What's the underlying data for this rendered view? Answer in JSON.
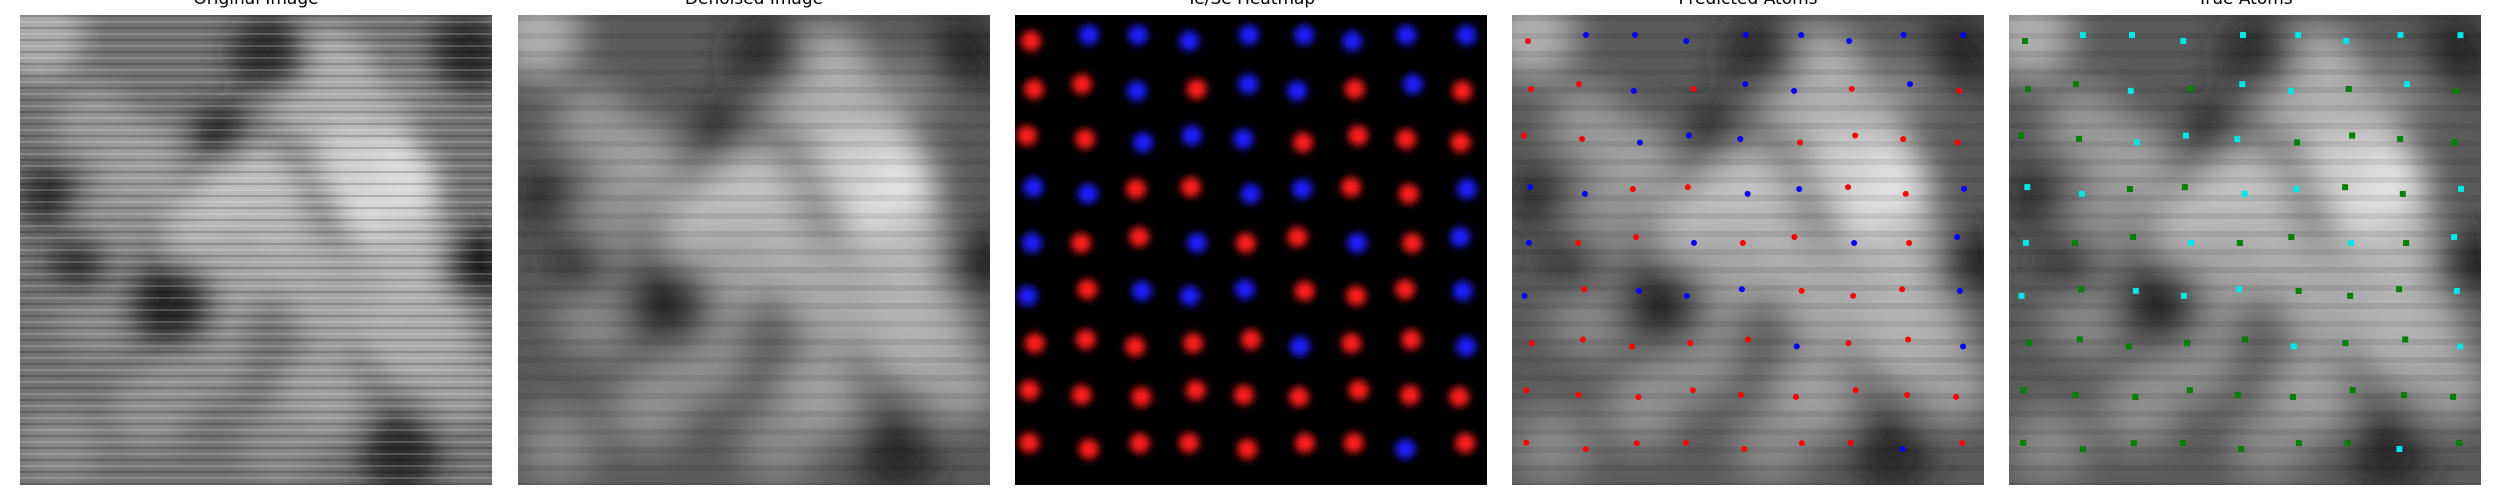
{
  "panels": [
    {
      "key": "original",
      "title": "Original Image",
      "kind": "texture",
      "style": "raw"
    },
    {
      "key": "denoised",
      "title": "Denoised Image",
      "kind": "texture",
      "style": "smooth"
    },
    {
      "key": "heatmap",
      "title": "Te/Se Heatmap",
      "kind": "heatmap"
    },
    {
      "key": "predicted",
      "title": "Predicted Atoms",
      "kind": "overlay",
      "marker": "dot"
    },
    {
      "key": "true",
      "title": "True Atoms",
      "kind": "overlay",
      "marker": "square"
    }
  ],
  "grid": {
    "rows": 9,
    "cols": 9
  },
  "colors": {
    "te_heat": "#ff1a1a",
    "se_heat": "#1a1aff",
    "predicted_te": "#ff0000",
    "predicted_se": "#0000ff",
    "true_te": "#008000",
    "true_se": "#00e5e5"
  },
  "species_legend": {
    "R": "Te",
    "B": "Se"
  },
  "heatmap_species": [
    "RBBBBBBBB",
    "RRBRBBRBR",
    "RRBBBRRRR",
    "BBRRBBRRB",
    "BRRBRRBRB",
    "BRBBBRRRB",
    "RRRRRBRRB",
    "RRRRRRRRR",
    "RRRRRRRBR"
  ],
  "predicted_species": [
    "RBBBBBBBB",
    "RRBRBBRBR",
    "RRBBBRRRR",
    "BBRRBBRRB",
    "BRRBRRBRB",
    "BRBBBRRRB",
    "RRRRRBRRB",
    "RRRRRRRRR",
    "RRRRRRRBR"
  ],
  "true_species": [
    "RBBBBBBBB",
    "RRBRBBRBR",
    "RRBBBRRRR",
    "BBRRBBRRB",
    "BRRBRRBRB",
    "BRBBBRRRB",
    "RRRRRBRRB",
    "RRRRRRRRR",
    "RRRRRRRBR"
  ]
}
